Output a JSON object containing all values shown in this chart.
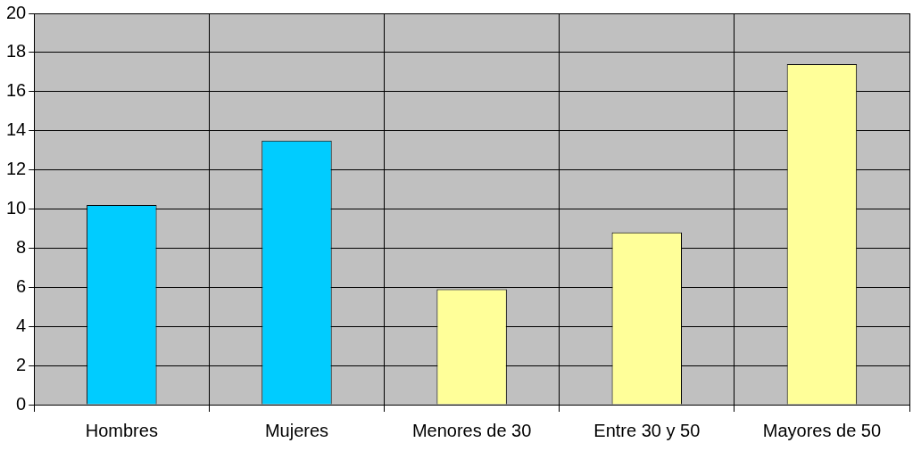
{
  "chart_data": {
    "type": "bar",
    "categories": [
      "Hombres",
      "Mujeres",
      "Menores de 30",
      "Entre 30 y 50",
      "Mayores de 50"
    ],
    "values": [
      10.2,
      13.5,
      5.9,
      8.8,
      17.4
    ],
    "colors": [
      "#00ccff",
      "#00ccff",
      "#ffff99",
      "#ffff99",
      "#ffff99"
    ],
    "ylim": [
      0,
      20
    ],
    "yticks": [
      0,
      2,
      4,
      6,
      8,
      10,
      12,
      14,
      16,
      18,
      20
    ],
    "grid": true,
    "legend": false
  }
}
